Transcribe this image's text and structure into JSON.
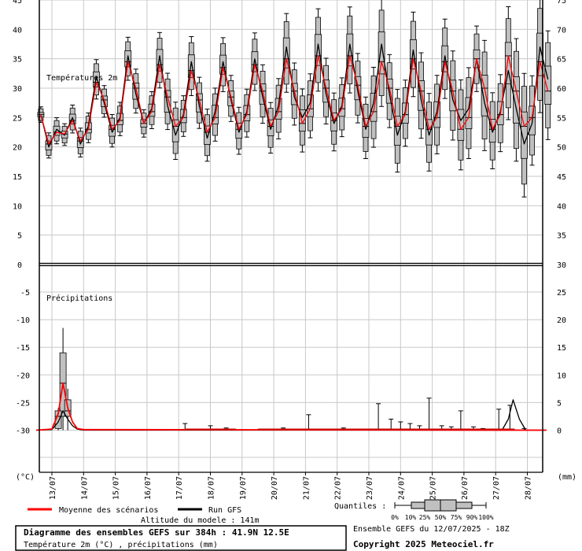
{
  "chart_data": {
    "type": "line",
    "temperature": {
      "label": "Températures 2m",
      "axis_left_ticks": [
        "45",
        "40",
        "35",
        "30",
        "25",
        "20",
        "15",
        "10",
        "5",
        "0"
      ],
      "axis_right_ticks": [
        "75",
        "70",
        "65",
        "60",
        "55",
        "50",
        "45",
        "40",
        "35",
        "30"
      ],
      "ylim": [
        0,
        45
      ],
      "mean": [
        [
          12.65,
          25.5
        ],
        [
          12.9,
          20.5
        ],
        [
          13.15,
          22.5
        ],
        [
          13.4,
          22.2
        ],
        [
          13.65,
          24.5
        ],
        [
          13.9,
          21.0
        ],
        [
          14.15,
          23.0
        ],
        [
          14.4,
          31.0
        ],
        [
          14.65,
          28.0
        ],
        [
          14.9,
          23.0
        ],
        [
          15.15,
          24.5
        ],
        [
          15.4,
          34.5
        ],
        [
          15.65,
          30.0
        ],
        [
          15.9,
          24.0
        ],
        [
          16.15,
          26.0
        ],
        [
          16.4,
          34.0
        ],
        [
          16.65,
          28.5
        ],
        [
          16.9,
          23.5
        ],
        [
          17.15,
          25.0
        ],
        [
          17.4,
          33.0
        ],
        [
          17.65,
          28.0
        ],
        [
          17.9,
          22.5
        ],
        [
          18.15,
          25.0
        ],
        [
          18.4,
          33.5
        ],
        [
          18.65,
          28.5
        ],
        [
          18.9,
          23.0
        ],
        [
          19.15,
          25.5
        ],
        [
          19.4,
          34.0
        ],
        [
          19.65,
          29.5
        ],
        [
          19.9,
          23.5
        ],
        [
          20.15,
          26.0
        ],
        [
          20.4,
          35.0
        ],
        [
          20.65,
          29.5
        ],
        [
          20.9,
          24.0
        ],
        [
          21.15,
          26.5
        ],
        [
          21.4,
          35.5
        ],
        [
          21.65,
          30.0
        ],
        [
          21.9,
          24.5
        ],
        [
          22.15,
          26.5
        ],
        [
          22.4,
          35.5
        ],
        [
          22.65,
          30.5
        ],
        [
          22.9,
          23.5
        ],
        [
          23.15,
          26.0
        ],
        [
          23.4,
          34.5
        ],
        [
          23.65,
          30.0
        ],
        [
          23.9,
          23.5
        ],
        [
          24.15,
          25.5
        ],
        [
          24.4,
          35.0
        ],
        [
          24.65,
          29.5
        ],
        [
          24.9,
          23.0
        ],
        [
          25.15,
          25.0
        ],
        [
          25.4,
          34.5
        ],
        [
          25.65,
          29.5
        ],
        [
          25.9,
          23.0
        ],
        [
          26.15,
          25.0
        ],
        [
          26.4,
          35.0
        ],
        [
          26.65,
          30.0
        ],
        [
          26.9,
          23.0
        ],
        [
          27.15,
          25.5
        ],
        [
          27.4,
          35.5
        ],
        [
          27.65,
          29.5
        ],
        [
          27.9,
          23.5
        ],
        [
          28.15,
          25.0
        ],
        [
          28.4,
          34.5
        ],
        [
          28.65,
          29.5
        ]
      ],
      "run": [
        [
          12.65,
          25.5
        ],
        [
          12.9,
          20.0
        ],
        [
          13.15,
          23.0
        ],
        [
          13.4,
          22.0
        ],
        [
          13.65,
          25.0
        ],
        [
          13.9,
          20.5
        ],
        [
          14.15,
          23.5
        ],
        [
          14.4,
          32.0
        ],
        [
          14.65,
          27.5
        ],
        [
          14.9,
          22.5
        ],
        [
          15.15,
          25.0
        ],
        [
          15.4,
          35.5
        ],
        [
          15.65,
          29.0
        ],
        [
          15.9,
          24.0
        ],
        [
          16.15,
          26.5
        ],
        [
          16.4,
          35.5
        ],
        [
          16.65,
          27.0
        ],
        [
          16.9,
          22.0
        ],
        [
          17.15,
          25.5
        ],
        [
          17.4,
          34.5
        ],
        [
          17.65,
          27.0
        ],
        [
          17.9,
          21.5
        ],
        [
          18.15,
          26.0
        ],
        [
          18.4,
          34.5
        ],
        [
          18.65,
          28.0
        ],
        [
          18.9,
          22.5
        ],
        [
          19.15,
          26.0
        ],
        [
          19.4,
          35.0
        ],
        [
          19.65,
          28.5
        ],
        [
          19.9,
          23.0
        ],
        [
          20.15,
          27.0
        ],
        [
          20.4,
          37.0
        ],
        [
          20.65,
          28.5
        ],
        [
          20.9,
          25.0
        ],
        [
          21.15,
          27.5
        ],
        [
          21.4,
          37.5
        ],
        [
          21.65,
          29.0
        ],
        [
          21.9,
          24.0
        ],
        [
          22.15,
          27.0
        ],
        [
          22.4,
          37.5
        ],
        [
          22.65,
          29.5
        ],
        [
          22.9,
          23.0
        ],
        [
          23.15,
          27.5
        ],
        [
          23.4,
          37.5
        ],
        [
          23.65,
          29.0
        ],
        [
          23.9,
          22.0
        ],
        [
          24.15,
          26.0
        ],
        [
          24.4,
          36.5
        ],
        [
          24.65,
          28.0
        ],
        [
          24.9,
          22.0
        ],
        [
          25.15,
          26.0
        ],
        [
          25.4,
          35.5
        ],
        [
          25.65,
          28.0
        ],
        [
          25.9,
          24.5
        ],
        [
          26.15,
          26.5
        ],
        [
          26.4,
          35.0
        ],
        [
          26.65,
          27.5
        ],
        [
          26.9,
          22.5
        ],
        [
          27.15,
          26.0
        ],
        [
          27.4,
          33.0
        ],
        [
          27.65,
          26.5
        ],
        [
          27.9,
          20.5
        ],
        [
          28.15,
          24.0
        ],
        [
          28.4,
          37.0
        ],
        [
          28.65,
          31.5
        ]
      ]
    },
    "precipitation": {
      "label": "Précipitations",
      "axis_left_ticks": [
        "-5",
        "-10",
        "-15",
        "-20",
        "-25",
        "-30"
      ],
      "axis_right_ticks": [
        "25",
        "20",
        "15",
        "10",
        "5",
        "0"
      ],
      "ylim": [
        0,
        30
      ],
      "mean": [
        [
          12.5,
          0
        ],
        [
          13.0,
          0.2
        ],
        [
          13.2,
          3
        ],
        [
          13.35,
          8.5
        ],
        [
          13.5,
          4
        ],
        [
          13.65,
          1.5
        ],
        [
          13.8,
          0.3
        ],
        [
          14.0,
          0.1
        ],
        [
          14.4,
          0.1
        ],
        [
          28.6,
          0
        ]
      ],
      "run": [
        [
          12.5,
          0
        ],
        [
          13.0,
          0.1
        ],
        [
          13.2,
          1.5
        ],
        [
          13.35,
          3.5
        ],
        [
          13.5,
          2
        ],
        [
          13.65,
          0.8
        ],
        [
          13.8,
          0.2
        ],
        [
          14.0,
          0
        ],
        [
          27.2,
          0
        ],
        [
          27.4,
          2
        ],
        [
          27.55,
          5.5
        ],
        [
          27.75,
          2
        ],
        [
          27.95,
          0
        ],
        [
          28.6,
          0
        ]
      ]
    },
    "x_ticks": [
      "13/07",
      "14/07",
      "15/07",
      "16/07",
      "17/07",
      "18/07",
      "19/07",
      "20/07",
      "21/07",
      "22/07",
      "23/07",
      "24/07",
      "25/07",
      "26/07",
      "27/07",
      "28/07"
    ],
    "left_unit": "(°C)",
    "right_unit": "(mm)",
    "legend": {
      "mean_label": "Moyenne des scénarios",
      "run_label": "Run GFS",
      "mean_color": "#ff0000",
      "run_color": "#000000",
      "quantiles_label": "Quantiles :",
      "quantile_ticks": [
        "0%",
        "10%",
        "25%",
        "50%",
        "75%",
        "90%",
        "100%"
      ]
    },
    "altitude": "Altitude du modele : 141m",
    "ensemble_info": "Ensemble GEFS du 12/07/2025 - 18Z",
    "copyright": "Copyright 2025 Meteociel.fr",
    "title": "Diagramme des ensembles GEFS sur 384h : 41.9N 12.5E",
    "subtitle": "Température 2m (°C) , précipitations (mm)",
    "grid": true,
    "box_color": "#c0c0c0"
  }
}
